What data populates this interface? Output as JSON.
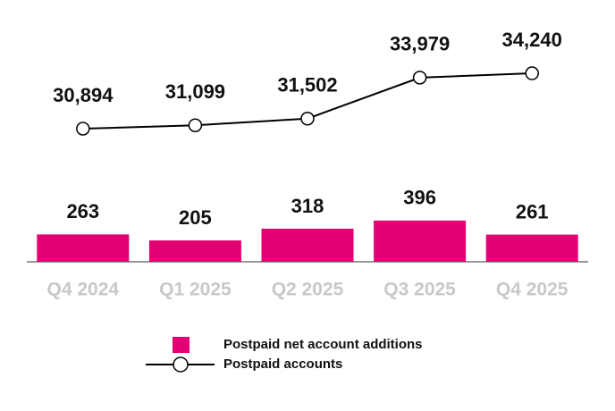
{
  "chart_data": {
    "type": "combo",
    "categories": [
      "Q4 2024",
      "Q1 2025",
      "Q2 2025",
      "Q3 2025",
      "Q4 2025"
    ],
    "series": [
      {
        "name": "Postpaid net account additions",
        "type": "bar",
        "color": "#e20074",
        "values": [
          263,
          205,
          318,
          396,
          261
        ]
      },
      {
        "name": "Postpaid accounts",
        "type": "line",
        "color": "#000000",
        "axis": "y2",
        "values": [
          30894,
          31099,
          31502,
          33979,
          34240
        ],
        "value_labels": [
          "30,894",
          "31,099",
          "31,502",
          "33,979",
          "34,240"
        ]
      }
    ],
    "ylim": [
      0,
      2000
    ],
    "y2lim": [
      22850,
      35430
    ]
  }
}
